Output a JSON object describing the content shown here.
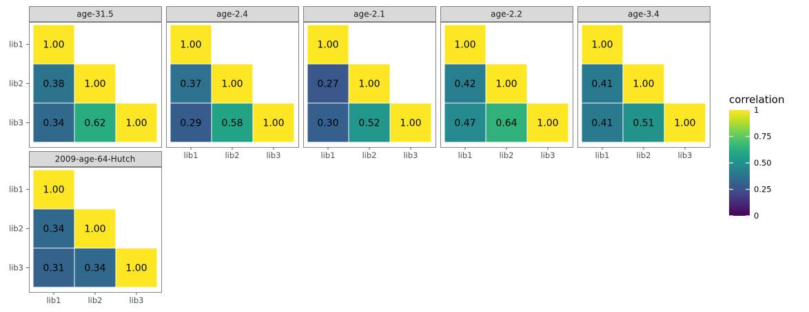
{
  "chart_data": {
    "type": "heatmap",
    "x_categories": [
      "lib1",
      "lib2",
      "lib3"
    ],
    "y_categories": [
      "lib1",
      "lib2",
      "lib3"
    ],
    "panels": [
      {
        "title": "age-31.5",
        "values": [
          [
            1.0,
            null,
            null
          ],
          [
            0.38,
            1.0,
            null
          ],
          [
            0.34,
            0.62,
            1.0
          ]
        ],
        "labels": [
          [
            "1.00",
            "",
            ""
          ],
          [
            "0.38",
            "1.00",
            ""
          ],
          [
            "0.34",
            "0.62",
            "1.00"
          ]
        ]
      },
      {
        "title": "age-2.4",
        "values": [
          [
            1.0,
            null,
            null
          ],
          [
            0.37,
            1.0,
            null
          ],
          [
            0.29,
            0.58,
            1.0
          ]
        ],
        "labels": [
          [
            "1.00",
            "",
            ""
          ],
          [
            "0.37",
            "1.00",
            ""
          ],
          [
            "0.29",
            "0.58",
            "1.00"
          ]
        ]
      },
      {
        "title": "age-2.1",
        "values": [
          [
            1.0,
            null,
            null
          ],
          [
            0.27,
            1.0,
            null
          ],
          [
            0.3,
            0.52,
            1.0
          ]
        ],
        "labels": [
          [
            "1.00",
            "",
            ""
          ],
          [
            "0.27",
            "1.00",
            ""
          ],
          [
            "0.30",
            "0.52",
            "1.00"
          ]
        ]
      },
      {
        "title": "age-2.2",
        "values": [
          [
            1.0,
            null,
            null
          ],
          [
            0.42,
            1.0,
            null
          ],
          [
            0.47,
            0.64,
            1.0
          ]
        ],
        "labels": [
          [
            "1.00",
            "",
            ""
          ],
          [
            "0.42",
            "1.00",
            ""
          ],
          [
            "0.47",
            "0.64",
            "1.00"
          ]
        ]
      },
      {
        "title": "age-3.4",
        "values": [
          [
            1.0,
            null,
            null
          ],
          [
            0.41,
            1.0,
            null
          ],
          [
            0.41,
            0.51,
            1.0
          ]
        ],
        "labels": [
          [
            "1.00",
            "",
            ""
          ],
          [
            "0.41",
            "1.00",
            ""
          ],
          [
            "0.41",
            "0.51",
            "1.00"
          ]
        ]
      },
      {
        "title": "2009-age-64-Hutch",
        "values": [
          [
            1.0,
            null,
            null
          ],
          [
            0.34,
            1.0,
            null
          ],
          [
            0.31,
            0.34,
            1.0
          ]
        ],
        "labels": [
          [
            "1.00",
            "",
            ""
          ],
          [
            "0.34",
            "1.00",
            ""
          ],
          [
            "0.31",
            "0.34",
            "1.00"
          ]
        ]
      }
    ],
    "legend": {
      "title": "correlation",
      "range": [
        0,
        1
      ],
      "ticks": [
        0,
        0.25,
        0.5,
        0.75,
        1
      ],
      "tick_labels": [
        "0",
        "0.25",
        "0.50",
        "0.75",
        "1"
      ],
      "placement": "right"
    },
    "colormap": "viridis",
    "grid": false
  }
}
